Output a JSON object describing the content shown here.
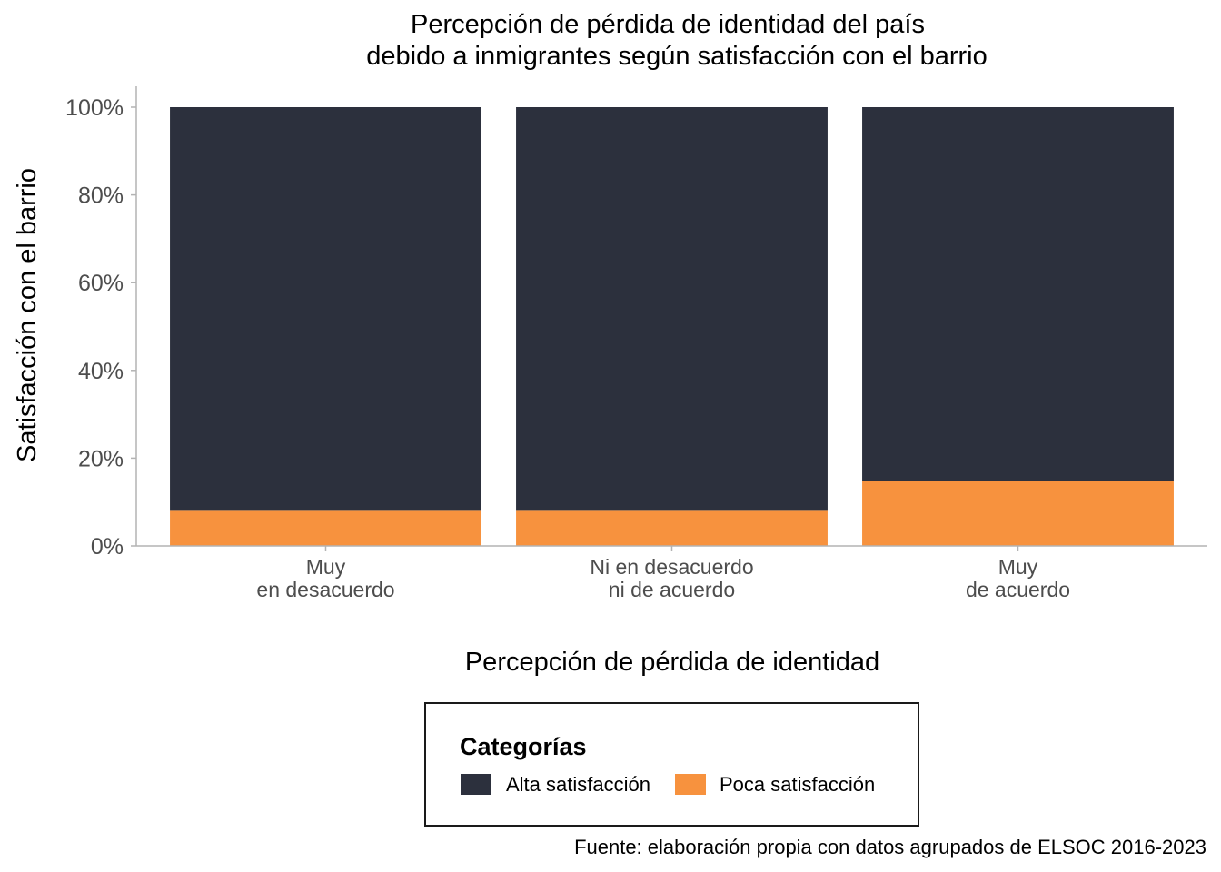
{
  "chart_data": {
    "type": "bar",
    "stacked": true,
    "title_lines": [
      "Percepción de pérdida de identidad del país",
      "debido a inmigrantes según satisfacción con el barrio"
    ],
    "xlabel": "Percepción de pérdida de identidad",
    "ylabel": "Satisfacción con el barrio",
    "categories": [
      [
        "Muy",
        "en desacuerdo"
      ],
      [
        "Ni en desacuerdo",
        "ni de acuerdo"
      ],
      [
        "Muy",
        "de acuerdo"
      ]
    ],
    "ylim": [
      0,
      1
    ],
    "yticks": [
      0,
      0.2,
      0.4,
      0.6,
      0.8,
      1.0
    ],
    "ytick_labels": [
      "0%",
      "20%",
      "40%",
      "60%",
      "80%",
      "100%"
    ],
    "series": [
      {
        "name": "Poca satisfacción",
        "color": "#f7923e",
        "values": [
          0.08,
          0.08,
          0.148
        ]
      },
      {
        "name": "Alta satisfacción",
        "color": "#2c303d",
        "values": [
          0.92,
          0.92,
          0.852
        ]
      }
    ],
    "legend": {
      "title": "Categorías",
      "placement": "bottom",
      "entries": [
        {
          "label": "Alta satisfacción",
          "color": "#2c303d"
        },
        {
          "label": "Poca satisfacción",
          "color": "#f7923e"
        }
      ]
    },
    "caption": "Fuente: elaboración propia con datos agrupados de ELSOC 2016-2023",
    "grid": false
  }
}
